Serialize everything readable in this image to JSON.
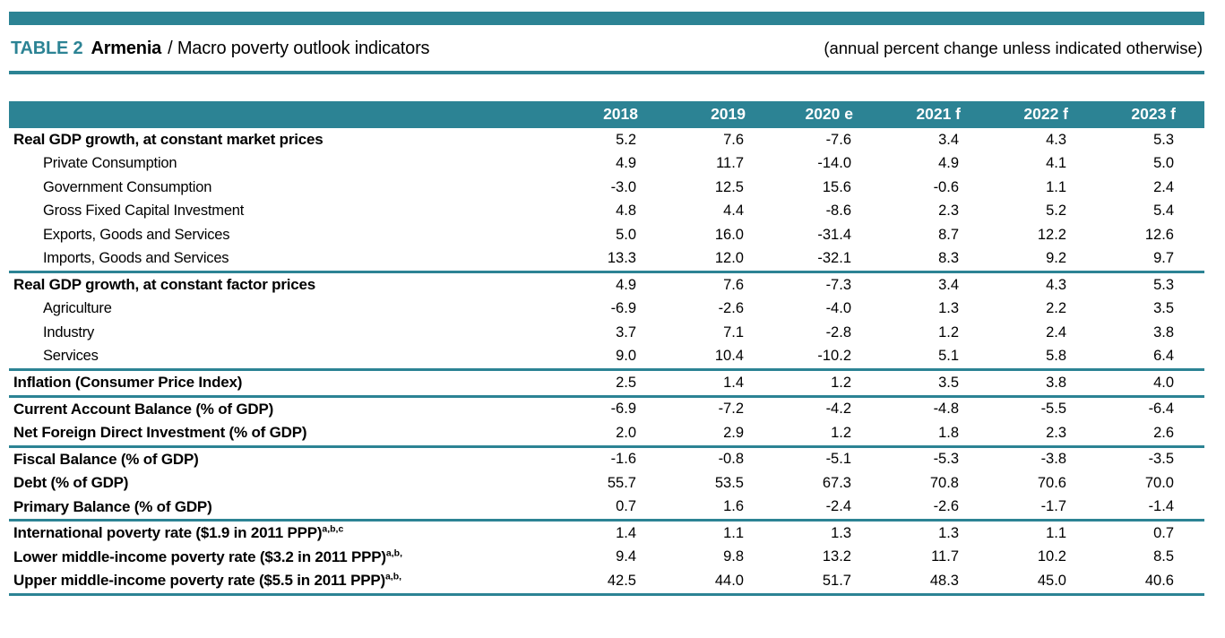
{
  "accent_color": "#2c8394",
  "header": {
    "table_label": "TABLE 2",
    "country": "Armenia",
    "title_rest": "/ Macro poverty outlook indicators",
    "note": "(annual percent change unless indicated otherwise)"
  },
  "table": {
    "columns": [
      "2018",
      "2019",
      "2020 e",
      "2021 f",
      "2022 f",
      "2023 f"
    ],
    "rows": [
      {
        "label": "Real GDP growth, at constant market prices",
        "bold": true,
        "indent": false,
        "rule_after": false,
        "values": [
          "5.2",
          "7.6",
          "-7.6",
          "3.4",
          "4.3",
          "5.3"
        ]
      },
      {
        "label": "Private Consumption",
        "bold": false,
        "indent": true,
        "rule_after": false,
        "values": [
          "4.9",
          "11.7",
          "-14.0",
          "4.9",
          "4.1",
          "5.0"
        ]
      },
      {
        "label": "Government Consumption",
        "bold": false,
        "indent": true,
        "rule_after": false,
        "values": [
          "-3.0",
          "12.5",
          "15.6",
          "-0.6",
          "1.1",
          "2.4"
        ]
      },
      {
        "label": "Gross Fixed Capital Investment",
        "bold": false,
        "indent": true,
        "rule_after": false,
        "values": [
          "4.8",
          "4.4",
          "-8.6",
          "2.3",
          "5.2",
          "5.4"
        ]
      },
      {
        "label": "Exports, Goods and Services",
        "bold": false,
        "indent": true,
        "rule_after": false,
        "values": [
          "5.0",
          "16.0",
          "-31.4",
          "8.7",
          "12.2",
          "12.6"
        ]
      },
      {
        "label": "Imports, Goods and Services",
        "bold": false,
        "indent": true,
        "rule_after": true,
        "values": [
          "13.3",
          "12.0",
          "-32.1",
          "8.3",
          "9.2",
          "9.7"
        ]
      },
      {
        "label": "Real GDP growth, at constant factor prices",
        "bold": true,
        "indent": false,
        "rule_after": false,
        "values": [
          "4.9",
          "7.6",
          "-7.3",
          "3.4",
          "4.3",
          "5.3"
        ]
      },
      {
        "label": "Agriculture",
        "bold": false,
        "indent": true,
        "rule_after": false,
        "values": [
          "-6.9",
          "-2.6",
          "-4.0",
          "1.3",
          "2.2",
          "3.5"
        ]
      },
      {
        "label": "Industry",
        "bold": false,
        "indent": true,
        "rule_after": false,
        "values": [
          "3.7",
          "7.1",
          "-2.8",
          "1.2",
          "2.4",
          "3.8"
        ]
      },
      {
        "label": "Services",
        "bold": false,
        "indent": true,
        "rule_after": true,
        "values": [
          "9.0",
          "10.4",
          "-10.2",
          "5.1",
          "5.8",
          "6.4"
        ]
      },
      {
        "label": "Inflation (Consumer Price Index)",
        "bold": true,
        "indent": false,
        "rule_after": true,
        "values": [
          "2.5",
          "1.4",
          "1.2",
          "3.5",
          "3.8",
          "4.0"
        ]
      },
      {
        "label": "Current Account Balance (% of GDP)",
        "bold": true,
        "indent": false,
        "rule_after": false,
        "values": [
          "-6.9",
          "-7.2",
          "-4.2",
          "-4.8",
          "-5.5",
          "-6.4"
        ]
      },
      {
        "label": "Net Foreign Direct Investment (% of GDP)",
        "bold": true,
        "indent": false,
        "rule_after": true,
        "values": [
          "2.0",
          "2.9",
          "1.2",
          "1.8",
          "2.3",
          "2.6"
        ]
      },
      {
        "label": "Fiscal Balance (% of GDP)",
        "bold": true,
        "indent": false,
        "rule_after": false,
        "values": [
          "-1.6",
          "-0.8",
          "-5.1",
          "-5.3",
          "-3.8",
          "-3.5"
        ]
      },
      {
        "label": "Debt (% of GDP)",
        "bold": true,
        "indent": false,
        "rule_after": false,
        "values": [
          "55.7",
          "53.5",
          "67.3",
          "70.8",
          "70.6",
          "70.0"
        ]
      },
      {
        "label": "Primary Balance (% of GDP)",
        "bold": true,
        "indent": false,
        "rule_after": true,
        "values": [
          "0.7",
          "1.6",
          "-2.4",
          "-2.6",
          "-1.7",
          "-1.4"
        ]
      },
      {
        "label": "International poverty rate ($1.9 in 2011 PPP)",
        "sup": "a,b,c",
        "bold": true,
        "indent": false,
        "rule_after": false,
        "values": [
          "1.4",
          "1.1",
          "1.3",
          "1.3",
          "1.1",
          "0.7"
        ]
      },
      {
        "label": "Lower middle-income poverty rate ($3.2 in 2011 PPP)",
        "sup": "a,b,",
        "bold": true,
        "indent": false,
        "rule_after": false,
        "values": [
          "9.4",
          "9.8",
          "13.2",
          "11.7",
          "10.2",
          "8.5"
        ]
      },
      {
        "label": "Upper middle-income poverty rate ($5.5 in 2011 PPP)",
        "sup": "a,b,",
        "bold": true,
        "indent": false,
        "rule_after": true,
        "values": [
          "42.5",
          "44.0",
          "51.7",
          "48.3",
          "45.0",
          "40.6"
        ]
      }
    ]
  }
}
